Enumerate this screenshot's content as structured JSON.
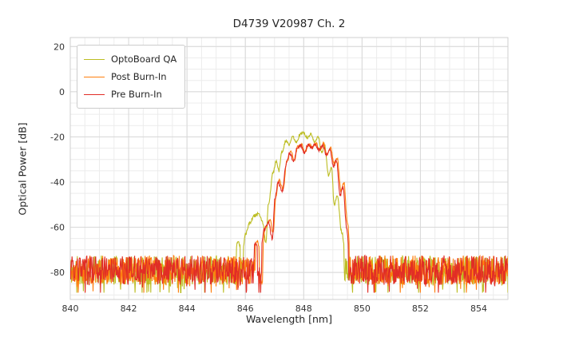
{
  "chart_data": {
    "type": "line",
    "title": "D4739 V20987 Ch. 2",
    "xlabel": "Wavelength [nm]",
    "ylabel": "Optical Power [dB]",
    "xlim": [
      840,
      855
    ],
    "ylim": [
      -92,
      24
    ],
    "x_ticks": [
      840,
      842,
      844,
      846,
      848,
      850,
      852,
      854
    ],
    "y_ticks": [
      20,
      0,
      -20,
      -40,
      -60,
      -80
    ],
    "x_minor_step": 0.5,
    "y_minor_step": 5,
    "grid": true,
    "legend_position": "upper-left",
    "noise_floor_db": {
      "mean": -79,
      "min": -88,
      "max": -70
    },
    "series": [
      {
        "name": "OptoBoard QA",
        "color": "#bcbd22",
        "seed": 11,
        "peak_wavelength_nm": 848.0,
        "peak_power_db": -18.2,
        "envelope": [
          [
            845.25,
            -78
          ],
          [
            845.45,
            -69
          ],
          [
            845.6,
            -75
          ],
          [
            845.75,
            -66
          ],
          [
            845.9,
            -72
          ],
          [
            846.0,
            -63
          ],
          [
            846.15,
            -58
          ],
          [
            846.3,
            -55
          ],
          [
            846.45,
            -54
          ],
          [
            846.6,
            -58
          ],
          [
            846.7,
            -67
          ],
          [
            846.8,
            -49
          ],
          [
            846.95,
            -36
          ],
          [
            847.05,
            -31
          ],
          [
            847.15,
            -35
          ],
          [
            847.25,
            -27
          ],
          [
            847.4,
            -21.5
          ],
          [
            847.5,
            -24
          ],
          [
            847.62,
            -19.8
          ],
          [
            847.75,
            -22.5
          ],
          [
            847.88,
            -18.8
          ],
          [
            848.0,
            -18.2
          ],
          [
            848.12,
            -20.5
          ],
          [
            848.25,
            -18.8
          ],
          [
            848.38,
            -22
          ],
          [
            848.5,
            -20.3
          ],
          [
            848.62,
            -27
          ],
          [
            848.72,
            -24
          ],
          [
            848.85,
            -37
          ],
          [
            848.95,
            -33
          ],
          [
            849.05,
            -50
          ],
          [
            849.15,
            -46
          ],
          [
            849.3,
            -62
          ],
          [
            849.45,
            -74
          ],
          [
            849.55,
            -80
          ]
        ]
      },
      {
        "name": "Post Burn-In",
        "color": "#ff7f0e",
        "seed": 22,
        "peak_wavelength_nm": 848.42,
        "peak_power_db": -22.8,
        "envelope": [
          [
            846.25,
            -74
          ],
          [
            846.4,
            -66
          ],
          [
            846.55,
            -72
          ],
          [
            846.7,
            -60
          ],
          [
            846.85,
            -57
          ],
          [
            846.95,
            -63
          ],
          [
            847.05,
            -46
          ],
          [
            847.15,
            -39
          ],
          [
            847.3,
            -43
          ],
          [
            847.42,
            -31
          ],
          [
            847.55,
            -26.5
          ],
          [
            847.68,
            -30
          ],
          [
            847.8,
            -24.5
          ],
          [
            847.92,
            -23.3
          ],
          [
            848.05,
            -26.5
          ],
          [
            848.18,
            -23.2
          ],
          [
            848.3,
            -24.5
          ],
          [
            848.42,
            -22.8
          ],
          [
            848.55,
            -25.5
          ],
          [
            848.68,
            -23.2
          ],
          [
            848.8,
            -27.5
          ],
          [
            848.92,
            -25
          ],
          [
            849.05,
            -32
          ],
          [
            849.15,
            -29.5
          ],
          [
            849.28,
            -44
          ],
          [
            849.38,
            -40
          ],
          [
            849.5,
            -58
          ],
          [
            849.6,
            -72
          ],
          [
            849.7,
            -79
          ]
        ]
      },
      {
        "name": "Pre Burn-In",
        "color": "#e12d26",
        "seed": 33,
        "peak_wavelength_nm": 848.4,
        "peak_power_db": -23.2,
        "envelope": [
          [
            846.2,
            -75
          ],
          [
            846.35,
            -67
          ],
          [
            846.5,
            -73
          ],
          [
            846.65,
            -61
          ],
          [
            846.8,
            -58
          ],
          [
            846.92,
            -65
          ],
          [
            847.02,
            -47
          ],
          [
            847.12,
            -40
          ],
          [
            847.27,
            -44
          ],
          [
            847.4,
            -32
          ],
          [
            847.52,
            -27
          ],
          [
            847.65,
            -31
          ],
          [
            847.78,
            -25
          ],
          [
            847.9,
            -23.8
          ],
          [
            848.02,
            -27
          ],
          [
            848.15,
            -23.5
          ],
          [
            848.28,
            -25
          ],
          [
            848.4,
            -23.2
          ],
          [
            848.52,
            -26
          ],
          [
            848.65,
            -23.6
          ],
          [
            848.78,
            -28
          ],
          [
            848.9,
            -25.5
          ],
          [
            849.02,
            -33
          ],
          [
            849.12,
            -30.5
          ],
          [
            849.25,
            -46
          ],
          [
            849.35,
            -42
          ],
          [
            849.47,
            -60
          ],
          [
            849.57,
            -73
          ],
          [
            849.67,
            -80
          ]
        ]
      }
    ]
  }
}
